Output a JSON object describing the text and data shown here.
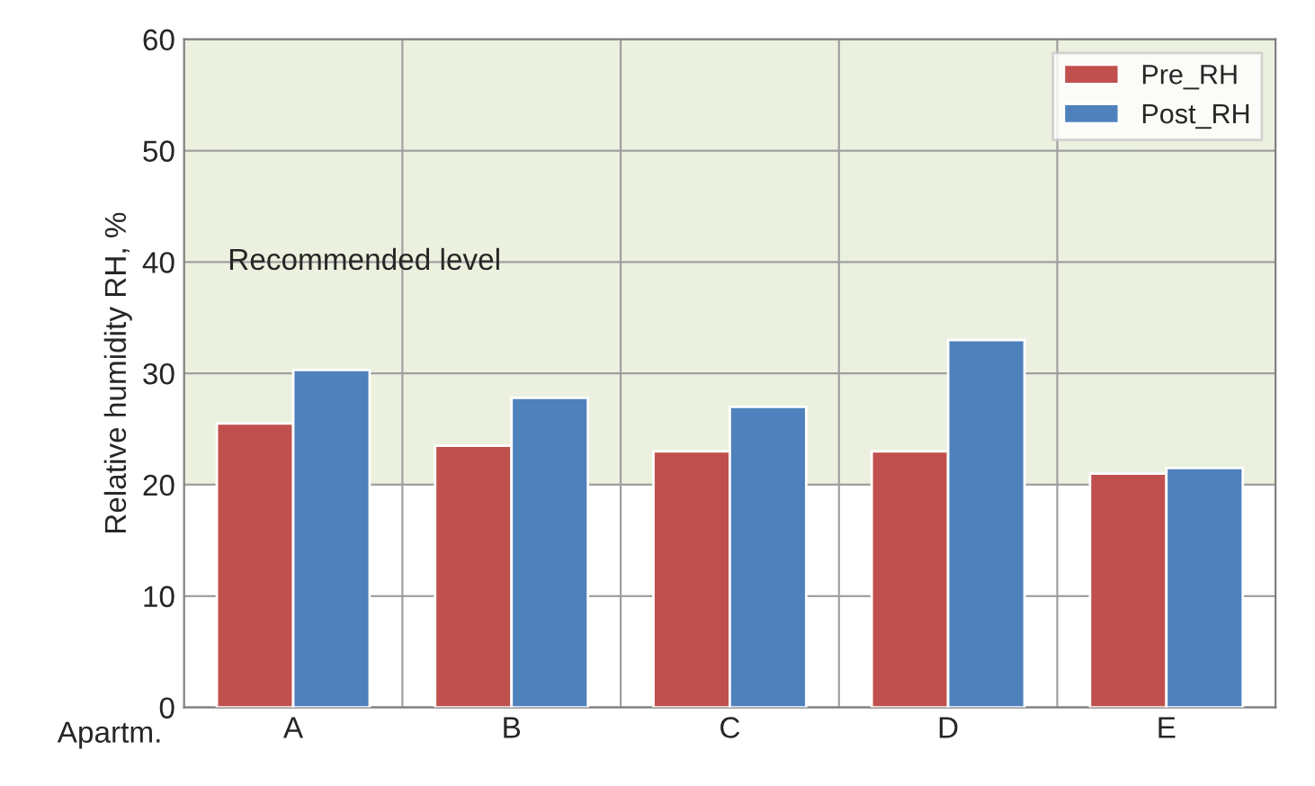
{
  "chart_data": {
    "type": "bar",
    "xlabel": "Apartm.",
    "ylabel": "Relative humidity RH, %",
    "categories": [
      "A",
      "B",
      "C",
      "D",
      "E"
    ],
    "series": [
      {
        "name": "Pre_RH",
        "color": "#c0504d",
        "values": [
          25.5,
          23.5,
          23,
          23,
          21
        ]
      },
      {
        "name": "Post_RH",
        "color": "#4f81bd",
        "values": [
          30.3,
          27.8,
          27,
          33,
          21.5
        ]
      }
    ],
    "ylim": [
      0,
      60
    ],
    "yticks": [
      0,
      10,
      20,
      30,
      40,
      50,
      60
    ],
    "bands": [
      {
        "axis": "y",
        "from": 20,
        "to": 60,
        "label": "Recommended level",
        "color": "#ebf1de"
      }
    ],
    "grid": true,
    "legend": "top right"
  }
}
